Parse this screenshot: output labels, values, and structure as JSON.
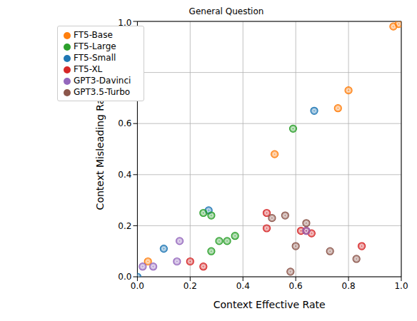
{
  "chart_data": {
    "type": "scatter",
    "title": "General Question",
    "x_label": "Context Effective Rate",
    "y_label": "Context Misleading Rate",
    "xlim": [
      0,
      1
    ],
    "ylim": [
      0,
      1
    ],
    "xticks": [
      {
        "value": 0,
        "label": "0.0"
      },
      {
        "value": 0.2,
        "label": "0.2"
      },
      {
        "value": 0.4,
        "label": "0.4"
      },
      {
        "value": 0.6,
        "label": "0.6"
      },
      {
        "value": 0.8,
        "label": "0.8"
      },
      {
        "value": 1,
        "label": "1.0"
      }
    ],
    "yticks": [
      {
        "value": 0,
        "label": "0.0"
      },
      {
        "value": 0.2,
        "label": "0.2"
      },
      {
        "value": 0.4,
        "label": "0.4"
      },
      {
        "value": 0.6,
        "label": "0.6"
      },
      {
        "value": 0.8,
        "label": "0.8"
      },
      {
        "value": 1,
        "label": "1.0"
      }
    ],
    "grid": true,
    "legend": "upper left",
    "marker": "circle",
    "series": [
      {
        "name": "FT5-Small",
        "color": "#1f77b4",
        "x": [
          0,
          0.1,
          0.27,
          0.67
        ],
        "y": [
          0,
          0.11,
          0.26,
          0.65
        ]
      },
      {
        "name": "FT5-Base",
        "color": "#ff7f0e",
        "x": [
          0.04,
          0.52,
          0.76,
          0.8,
          0.97,
          0.99
        ],
        "y": [
          0.06,
          0.48,
          0.66,
          0.73,
          0.98,
          0.99
        ]
      },
      {
        "name": "FT5-Large",
        "color": "#2ca02c",
        "x": [
          0.25,
          0.28,
          0.28,
          0.31,
          0.34,
          0.37,
          0.59
        ],
        "y": [
          0.25,
          0.24,
          0.1,
          0.14,
          0.14,
          0.16,
          0.58
        ]
      },
      {
        "name": "FT5-XL",
        "color": "#d62728",
        "x": [
          0.2,
          0.25,
          0.49,
          0.49,
          0.62,
          0.64,
          0.66,
          0.85
        ],
        "y": [
          0.06,
          0.04,
          0.25,
          0.19,
          0.18,
          0.18,
          0.17,
          0.12
        ]
      },
      {
        "name": "GPT3-Davinci",
        "color": "#9467bd",
        "x": [
          0.02,
          0.06,
          0.15,
          0.16,
          0.64
        ],
        "y": [
          0.04,
          0.04,
          0.06,
          0.14,
          0.18
        ]
      },
      {
        "name": "GPT3.5-Turbo",
        "color": "#8c564b",
        "x": [
          0.51,
          0.56,
          0.58,
          0.6,
          0.64,
          0.73,
          0.83
        ],
        "y": [
          0.23,
          0.24,
          0.02,
          0.12,
          0.21,
          0.1,
          0.07
        ]
      }
    ]
  }
}
